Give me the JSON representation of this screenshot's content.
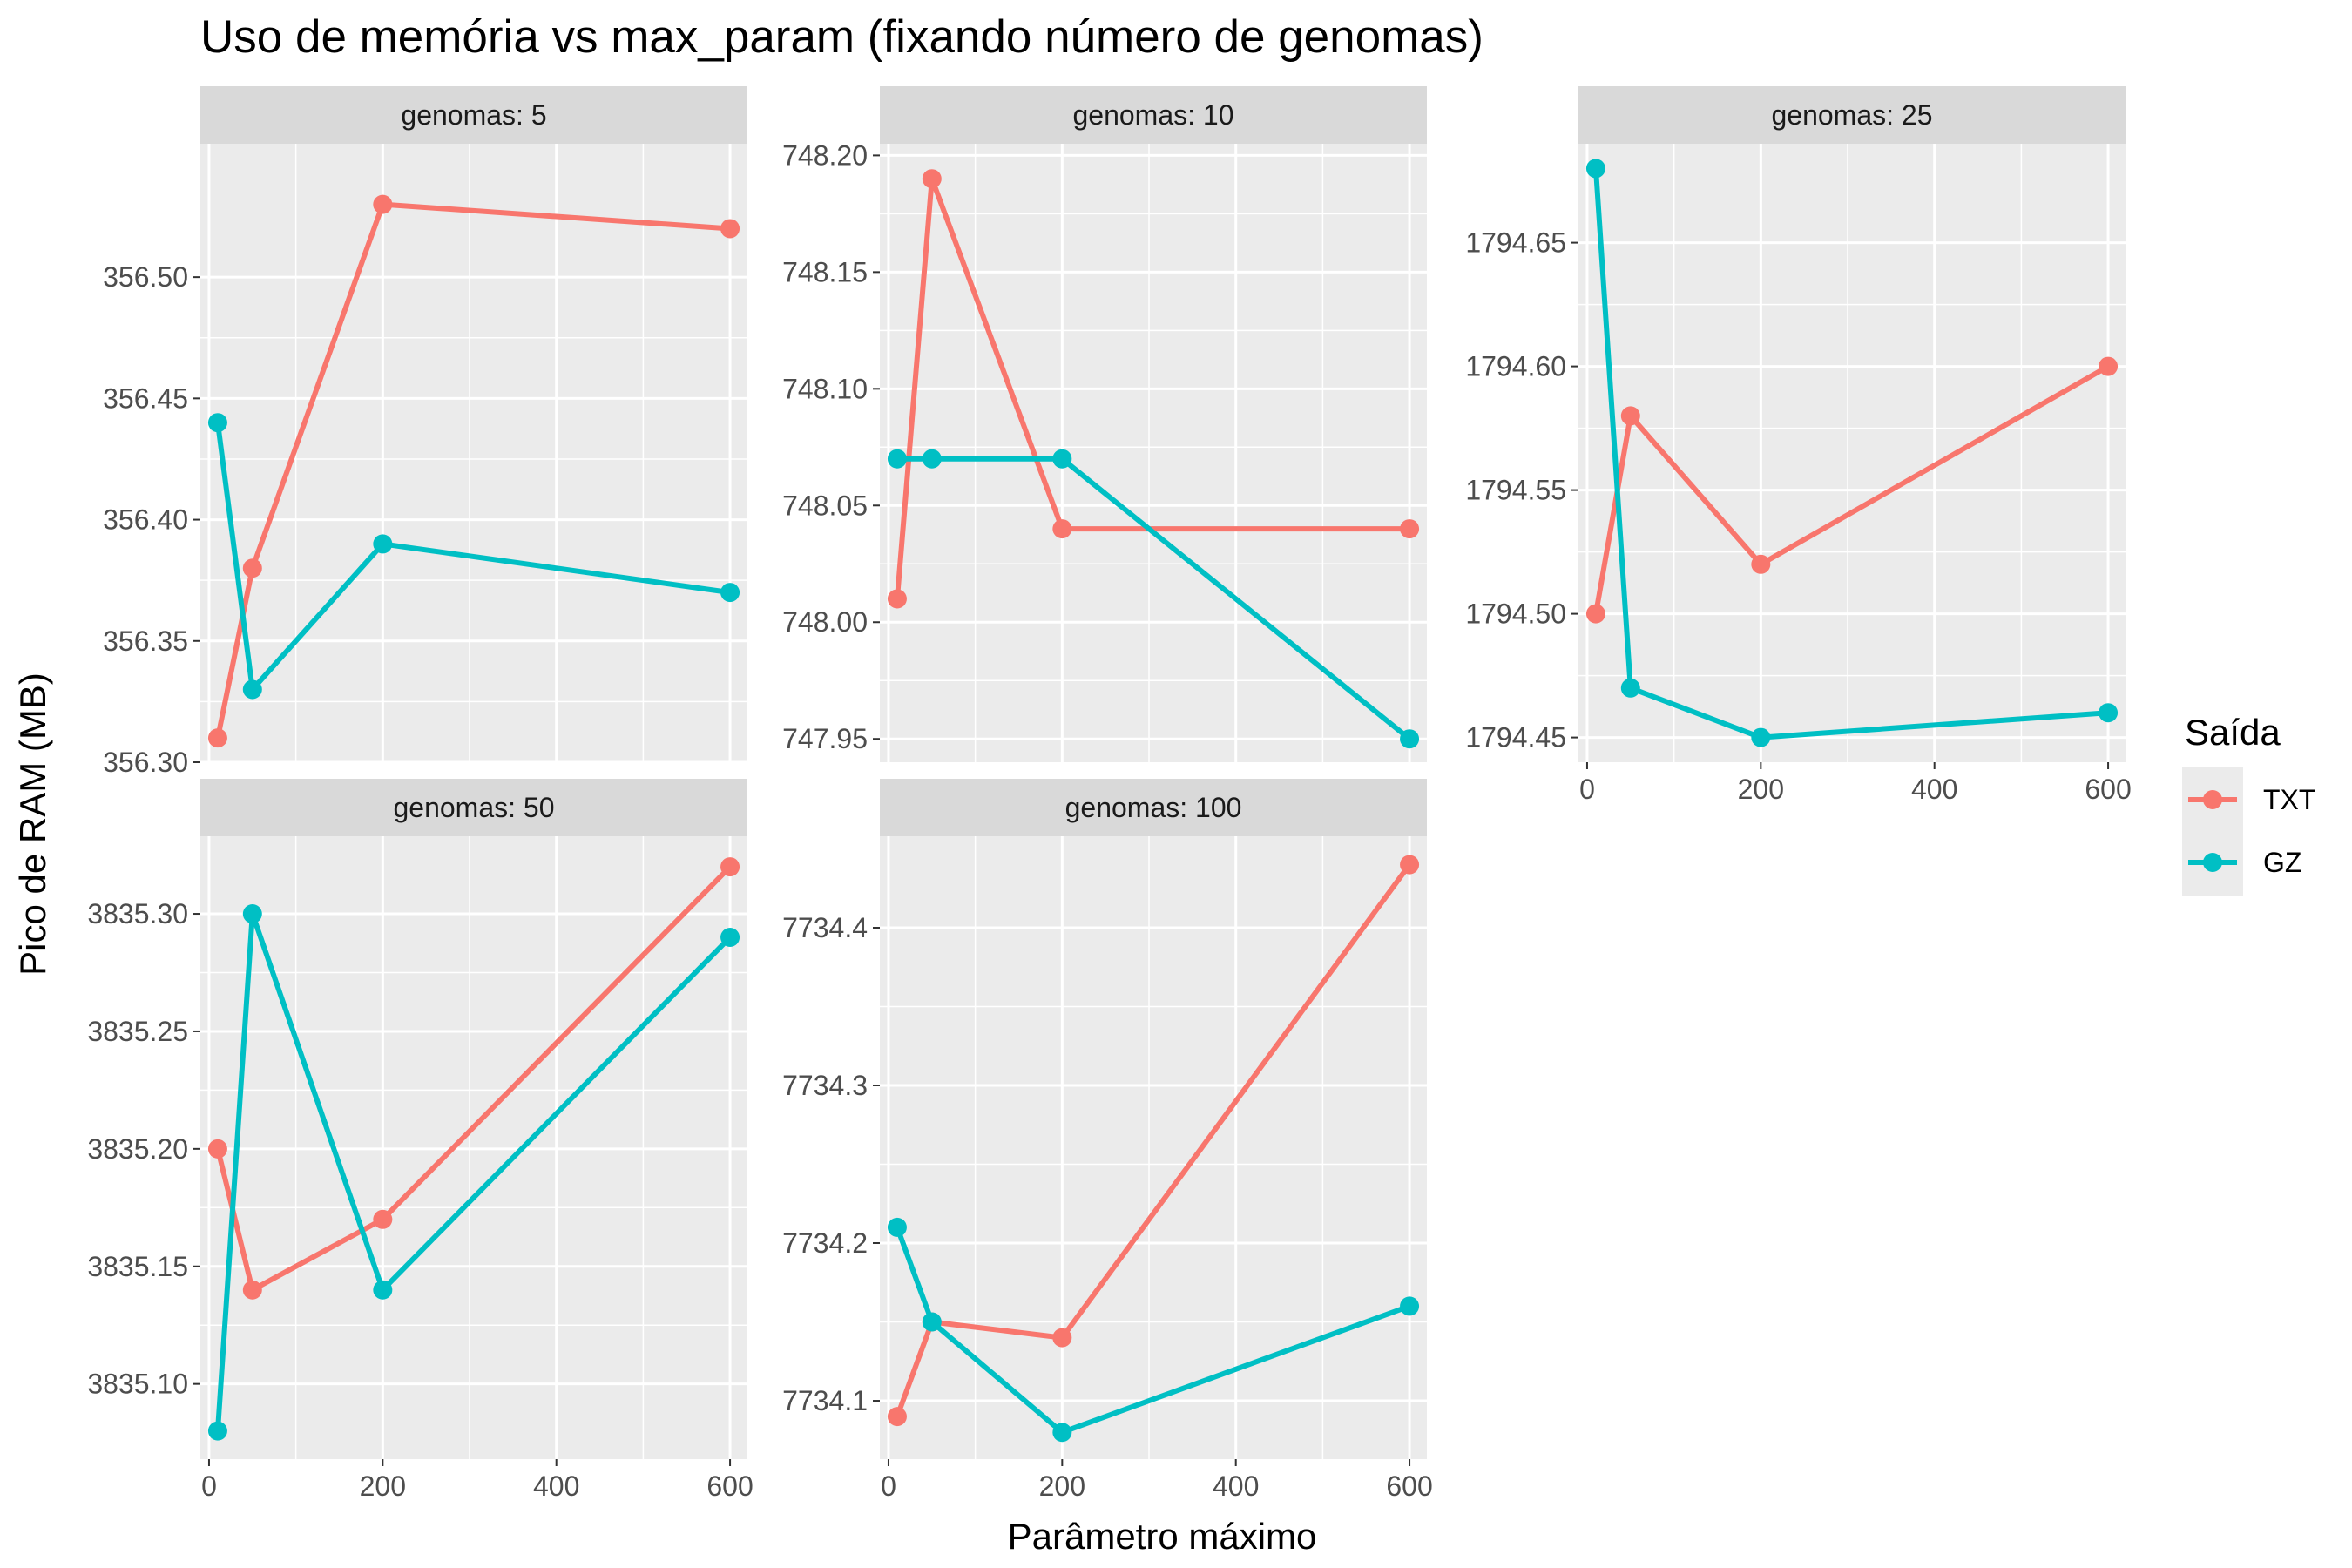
{
  "chart_data": {
    "type": "line",
    "title": "Uso de memória vs max_param (fixando número de genomas)",
    "xlabel": "Parâmetro máximo",
    "ylabel": "Pico de RAM (MB)",
    "legend": {
      "title": "Saída",
      "position": "right",
      "entries": [
        "TXT",
        "GZ"
      ]
    },
    "colors": {
      "TXT": "#F8766D",
      "GZ": "#00BFC4"
    },
    "grid": true,
    "x": [
      10,
      50,
      200,
      600
    ],
    "x_ticks": [
      0,
      200,
      400,
      600
    ],
    "xlim": [
      -10,
      620
    ],
    "panels": [
      {
        "strip": "genomas: 5",
        "ylim": [
          356.3,
          356.555
        ],
        "y_ticks": [
          356.3,
          356.35,
          356.4,
          356.45,
          356.5
        ],
        "y_tick_labels": [
          "356.30",
          "356.35",
          "356.40",
          "356.45",
          "356.50"
        ],
        "series": [
          {
            "name": "TXT",
            "values": [
              356.31,
              356.38,
              356.53,
              356.52
            ]
          },
          {
            "name": "GZ",
            "values": [
              356.44,
              356.33,
              356.39,
              356.37
            ]
          }
        ]
      },
      {
        "strip": "genomas: 10",
        "ylim": [
          747.94,
          748.205
        ],
        "y_ticks": [
          747.95,
          748.0,
          748.05,
          748.1,
          748.15,
          748.2
        ],
        "y_tick_labels": [
          "747.95",
          "748.00",
          "748.05",
          "748.10",
          "748.15",
          "748.20"
        ],
        "series": [
          {
            "name": "TXT",
            "values": [
              748.01,
              748.19,
              748.04,
              748.04
            ]
          },
          {
            "name": "GZ",
            "values": [
              748.07,
              748.07,
              748.07,
              747.95
            ]
          }
        ]
      },
      {
        "strip": "genomas: 25",
        "ylim": [
          1794.44,
          1794.69
        ],
        "y_ticks": [
          1794.45,
          1794.5,
          1794.55,
          1794.6,
          1794.65
        ],
        "y_tick_labels": [
          "1794.45",
          "1794.50",
          "1794.55",
          "1794.60",
          "1794.65"
        ],
        "series": [
          {
            "name": "TXT",
            "values": [
              1794.5,
              1794.58,
              1794.52,
              1794.6
            ]
          },
          {
            "name": "GZ",
            "values": [
              1794.68,
              1794.47,
              1794.45,
              1794.46
            ]
          }
        ]
      },
      {
        "strip": "genomas: 50",
        "ylim": [
          3835.068,
          3835.333
        ],
        "y_ticks": [
          3835.1,
          3835.15,
          3835.2,
          3835.25,
          3835.3
        ],
        "y_tick_labels": [
          "3835.10",
          "3835.15",
          "3835.20",
          "3835.25",
          "3835.30"
        ],
        "series": [
          {
            "name": "TXT",
            "values": [
              3835.2,
              3835.14,
              3835.17,
              3835.32
            ]
          },
          {
            "name": "GZ",
            "values": [
              3835.08,
              3835.3,
              3835.14,
              3835.29
            ]
          }
        ]
      },
      {
        "strip": "genomas: 100",
        "ylim": [
          7734.063,
          7734.458
        ],
        "y_ticks": [
          7734.1,
          7734.2,
          7734.3,
          7734.4
        ],
        "y_tick_labels": [
          "7734.1",
          "7734.2",
          "7734.3",
          "7734.4"
        ],
        "series": [
          {
            "name": "TXT",
            "values": [
              7734.09,
              7734.15,
              7734.14,
              7734.44
            ]
          },
          {
            "name": "GZ",
            "values": [
              7734.21,
              7734.15,
              7734.08,
              7734.16
            ]
          }
        ]
      }
    ]
  }
}
